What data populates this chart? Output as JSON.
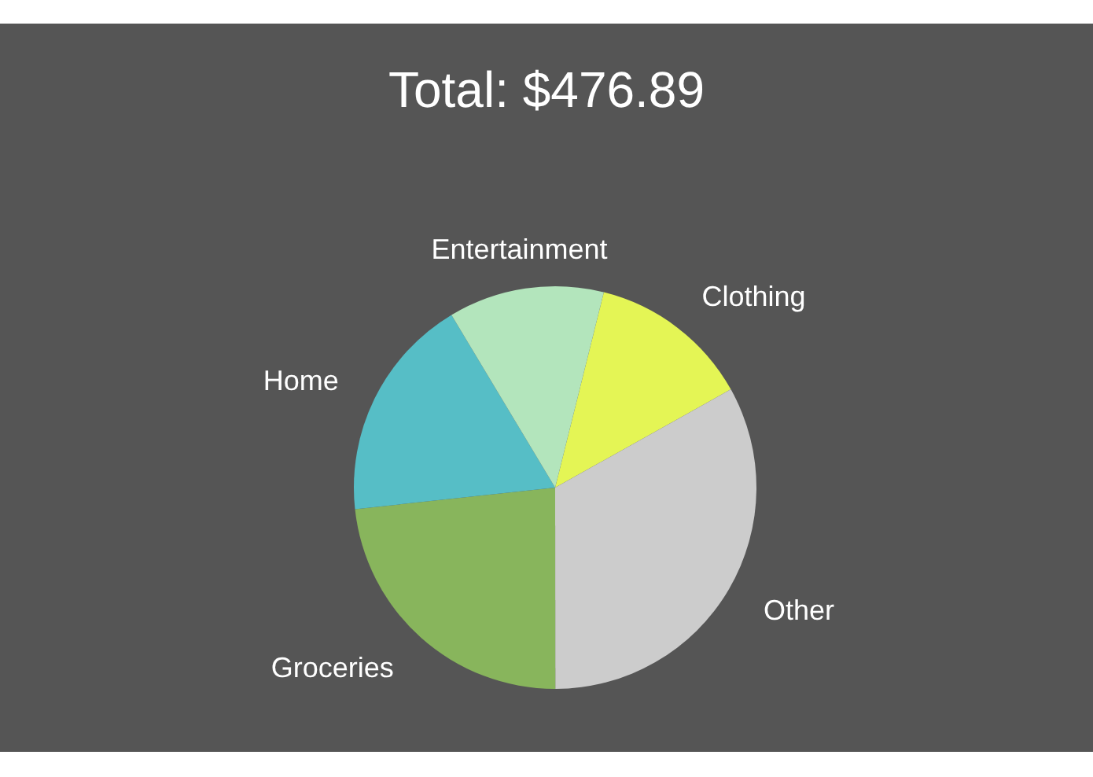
{
  "chart_data": {
    "type": "pie",
    "title": "Total: $476.89",
    "categories": [
      "Clothing",
      "Other",
      "Groceries",
      "Home",
      "Entertainment"
    ],
    "values": [
      13,
      33.1,
      23.3,
      18.1,
      12.5
    ],
    "colors": [
      "#e4f555",
      "#cccccc",
      "#88b55c",
      "#56bec6",
      "#b3e5bc"
    ]
  }
}
